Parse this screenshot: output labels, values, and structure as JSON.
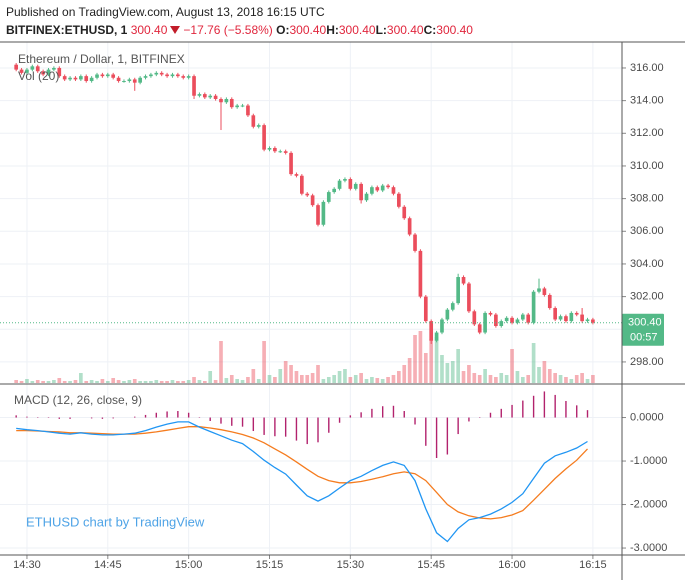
{
  "header": {
    "published": "Published on TradingView.com, August 13, 2018 16:15 UTC",
    "symbol": "BITFINEX:ETHUSD, 1",
    "last": "300.40",
    "change": "−17.76 (−5.58%)",
    "ohlc": [
      {
        "label": "O:",
        "value": "300.40"
      },
      {
        "label": "H:",
        "value": "300.40"
      },
      {
        "label": "L:",
        "value": "300.40"
      },
      {
        "label": "C:",
        "value": "300.40"
      }
    ]
  },
  "chart_data": [
    {
      "type": "candlestick",
      "title": "Ethereum / Dollar, 1, BITFINEX",
      "volume_label": "Vol (20)",
      "x": [
        868,
        869,
        870,
        871,
        872,
        873,
        874,
        875,
        876,
        877,
        878,
        879,
        880,
        881,
        882,
        883,
        884,
        885,
        886,
        887,
        888,
        889,
        890,
        891,
        892,
        893,
        894,
        895,
        896,
        897,
        898,
        899,
        900,
        901,
        902,
        903,
        904,
        905,
        906,
        907,
        908,
        909,
        910,
        911,
        912,
        913,
        914,
        915,
        916,
        917,
        918,
        919,
        920,
        921,
        922,
        923,
        924,
        925,
        926,
        927,
        928,
        929,
        930,
        931,
        932,
        933,
        934,
        935,
        936,
        937,
        938,
        939,
        940,
        941,
        942,
        943,
        944,
        945,
        946,
        947,
        948,
        949,
        950,
        951,
        952,
        953,
        954,
        955,
        956,
        957,
        958,
        959,
        960,
        961,
        962,
        963,
        964,
        965,
        966,
        967,
        968,
        969,
        970,
        971,
        972,
        973,
        974,
        975
      ],
      "open": [
        316.2,
        315.9,
        315.7,
        315.9,
        316.1,
        315.8,
        315.6,
        315.9,
        316.0,
        315.5,
        315.3,
        315.4,
        315.3,
        315.5,
        315.2,
        315.4,
        315.6,
        315.5,
        315.6,
        315.4,
        315.2,
        315.2,
        315.3,
        315.1,
        315.4,
        315.5,
        315.6,
        315.7,
        315.6,
        315.5,
        315.6,
        315.5,
        315.4,
        315.5,
        314.3,
        314.4,
        314.2,
        314.3,
        314.1,
        313.9,
        314.1,
        313.6,
        313.7,
        313.7,
        313.1,
        312.4,
        312.5,
        311.0,
        311.1,
        310.9,
        310.9,
        310.8,
        309.5,
        309.4,
        308.3,
        308.2,
        307.6,
        306.4,
        307.8,
        308.4,
        308.6,
        309.1,
        309.2,
        308.6,
        308.9,
        307.9,
        308.3,
        308.7,
        308.5,
        308.8,
        308.7,
        308.3,
        307.5,
        306.8,
        305.8,
        304.8,
        302.0,
        300.5,
        299.3,
        299.8,
        300.6,
        301.2,
        301.6,
        303.2,
        302.8,
        301.1,
        300.3,
        299.8,
        301.0,
        300.9,
        300.2,
        300.5,
        300.7,
        300.4,
        300.6,
        300.9,
        300.4,
        302.3,
        302.5,
        302.1,
        301.3,
        300.6,
        300.8,
        300.5,
        301.0,
        300.9,
        300.5,
        300.6
      ],
      "high": [
        316.3,
        316.0,
        316.0,
        316.2,
        316.2,
        315.9,
        316.0,
        316.1,
        316.1,
        315.6,
        315.5,
        315.5,
        315.6,
        315.6,
        315.5,
        315.7,
        315.7,
        315.7,
        315.7,
        315.5,
        315.3,
        315.4,
        315.4,
        315.5,
        315.6,
        315.7,
        315.8,
        315.8,
        315.7,
        315.7,
        315.7,
        315.6,
        315.6,
        315.6,
        314.5,
        314.5,
        314.4,
        314.4,
        314.2,
        314.2,
        314.2,
        313.8,
        313.8,
        313.8,
        313.2,
        312.6,
        312.6,
        311.2,
        311.2,
        311.0,
        311.0,
        310.9,
        309.6,
        309.5,
        308.4,
        308.3,
        307.7,
        307.9,
        308.5,
        308.7,
        309.2,
        309.3,
        309.3,
        309.0,
        309.0,
        308.4,
        308.8,
        308.8,
        308.9,
        308.9,
        308.8,
        308.4,
        307.6,
        306.9,
        305.9,
        304.9,
        302.1,
        300.6,
        299.9,
        300.7,
        301.3,
        301.7,
        303.4,
        303.3,
        302.9,
        301.2,
        300.4,
        301.1,
        301.1,
        301.0,
        300.6,
        300.8,
        300.8,
        300.7,
        301.0,
        301.0,
        302.4,
        303.1,
        302.6,
        302.2,
        301.4,
        300.9,
        300.9,
        301.1,
        301.1,
        301.3,
        300.7,
        300.7
      ],
      "low": [
        315.8,
        315.6,
        315.6,
        315.8,
        315.7,
        315.5,
        315.5,
        315.8,
        315.4,
        315.2,
        315.2,
        315.2,
        315.2,
        315.1,
        315.1,
        315.3,
        315.4,
        315.4,
        315.3,
        315.1,
        315.1,
        315.1,
        314.6,
        315.0,
        315.3,
        315.4,
        315.5,
        315.5,
        315.4,
        315.4,
        315.4,
        315.3,
        315.3,
        314.1,
        314.2,
        314.1,
        314.1,
        314.0,
        312.2,
        313.8,
        313.5,
        313.5,
        313.6,
        313.0,
        312.3,
        312.3,
        310.9,
        310.9,
        310.8,
        310.8,
        310.7,
        309.4,
        309.3,
        308.2,
        308.1,
        307.5,
        306.3,
        306.3,
        307.7,
        308.3,
        308.5,
        309.0,
        308.5,
        308.5,
        307.7,
        307.8,
        308.2,
        308.4,
        308.4,
        308.6,
        308.2,
        307.4,
        306.7,
        305.7,
        304.7,
        301.9,
        300.4,
        299.1,
        299.2,
        299.7,
        300.5,
        301.1,
        301.5,
        302.7,
        301.0,
        300.2,
        299.7,
        299.7,
        300.8,
        300.1,
        300.1,
        300.4,
        300.3,
        300.3,
        300.5,
        300.3,
        300.3,
        302.2,
        302.0,
        301.2,
        300.5,
        300.5,
        300.4,
        300.4,
        300.8,
        300.4,
        300.4,
        300.3
      ],
      "close": [
        315.9,
        315.7,
        315.9,
        316.1,
        315.8,
        315.6,
        315.9,
        316.0,
        315.5,
        315.3,
        315.4,
        315.3,
        315.5,
        315.2,
        315.4,
        315.6,
        315.5,
        315.6,
        315.4,
        315.2,
        315.2,
        315.3,
        315.1,
        315.4,
        315.5,
        315.6,
        315.7,
        315.6,
        315.5,
        315.6,
        315.5,
        315.4,
        315.5,
        314.3,
        314.4,
        314.2,
        314.3,
        314.1,
        313.9,
        314.1,
        313.6,
        313.7,
        313.7,
        313.1,
        312.4,
        312.5,
        311.0,
        311.1,
        310.9,
        310.9,
        310.8,
        309.5,
        309.4,
        308.3,
        308.2,
        307.6,
        306.4,
        307.8,
        308.4,
        308.6,
        309.1,
        309.2,
        308.6,
        308.9,
        307.9,
        308.3,
        308.7,
        308.5,
        308.8,
        308.7,
        308.3,
        307.5,
        306.8,
        305.8,
        304.8,
        302.0,
        300.5,
        299.3,
        299.8,
        300.6,
        301.2,
        301.6,
        303.2,
        302.8,
        301.1,
        300.3,
        299.8,
        301.0,
        300.9,
        300.2,
        300.5,
        300.7,
        300.4,
        300.6,
        300.9,
        300.4,
        302.3,
        302.5,
        302.1,
        301.3,
        300.6,
        300.8,
        300.5,
        301.0,
        300.9,
        300.5,
        300.6,
        300.4
      ],
      "volume": [
        3,
        2,
        4,
        2,
        3,
        2,
        2,
        3,
        5,
        2,
        2,
        3,
        10,
        2,
        3,
        2,
        4,
        2,
        5,
        3,
        2,
        3,
        4,
        2,
        2,
        2,
        3,
        2,
        2,
        3,
        2,
        2,
        3,
        6,
        3,
        2,
        12,
        3,
        42,
        5,
        8,
        4,
        3,
        6,
        14,
        4,
        42,
        8,
        6,
        14,
        22,
        18,
        12,
        8,
        8,
        10,
        18,
        4,
        6,
        8,
        12,
        14,
        6,
        8,
        10,
        4,
        6,
        5,
        4,
        6,
        8,
        12,
        18,
        25,
        48,
        52,
        30,
        44,
        46,
        28,
        20,
        22,
        34,
        12,
        18,
        10,
        8,
        14,
        8,
        6,
        10,
        8,
        34,
        12,
        6,
        8,
        40,
        16,
        22,
        14,
        10,
        8,
        6,
        4,
        8,
        10,
        4,
        8
      ],
      "up_color": "#53b987",
      "down_color": "#eb4d5c",
      "xlim": [
        865,
        980.4
      ],
      "xticks": [
        {
          "value": 870,
          "label": "14:30"
        },
        {
          "value": 885,
          "label": "14:45"
        },
        {
          "value": 900,
          "label": "15:00"
        },
        {
          "value": 915,
          "label": "15:15"
        },
        {
          "value": 930,
          "label": "15:30"
        },
        {
          "value": 945,
          "label": "15:45"
        },
        {
          "value": 960,
          "label": "16:00"
        },
        {
          "value": 975,
          "label": "16:15"
        }
      ],
      "ylim": [
        296.71,
        317.59
      ],
      "yticks": [
        {
          "value": 298,
          "label": "298.00"
        },
        {
          "value": 300,
          "label": "300.00"
        },
        {
          "value": 302,
          "label": "302.00"
        },
        {
          "value": 304,
          "label": "304.00"
        },
        {
          "value": 306,
          "label": "306.00"
        },
        {
          "value": 308,
          "label": "308.00"
        },
        {
          "value": 310,
          "label": "310.00"
        },
        {
          "value": 312,
          "label": "312.00"
        },
        {
          "value": 314,
          "label": "314.00"
        },
        {
          "value": 316,
          "label": "316.00"
        }
      ],
      "grid": true,
      "last_price_label": "300.40",
      "countdown": "00:57"
    },
    {
      "type": "macd",
      "title": "MACD (12, 26, close, 9)",
      "watermark": "ETHUSD chart by TradingView",
      "x": [
        868,
        870,
        872,
        874,
        876,
        878,
        880,
        882,
        884,
        886,
        888,
        890,
        892,
        894,
        896,
        898,
        900,
        902,
        904,
        906,
        908,
        910,
        912,
        914,
        916,
        918,
        920,
        922,
        924,
        926,
        928,
        930,
        932,
        934,
        936,
        938,
        940,
        942,
        944,
        946,
        948,
        950,
        952,
        954,
        956,
        958,
        960,
        962,
        964,
        966,
        968,
        970,
        972,
        974
      ],
      "macd": {
        "color": "#2196f3",
        "values": [
          -0.25,
          -0.28,
          -0.3,
          -0.33,
          -0.36,
          -0.38,
          -0.35,
          -0.38,
          -0.4,
          -0.4,
          -0.38,
          -0.36,
          -0.3,
          -0.22,
          -0.15,
          -0.1,
          -0.1,
          -0.22,
          -0.32,
          -0.42,
          -0.52,
          -0.6,
          -0.78,
          -0.98,
          -1.15,
          -1.3,
          -1.55,
          -1.8,
          -1.92,
          -1.8,
          -1.62,
          -1.45,
          -1.35,
          -1.22,
          -1.1,
          -1.02,
          -1.1,
          -1.45,
          -2.1,
          -2.65,
          -2.85,
          -2.55,
          -2.35,
          -2.3,
          -2.22,
          -2.1,
          -1.95,
          -1.75,
          -1.4,
          -1.05,
          -0.88,
          -0.8,
          -0.7,
          -0.55
        ]
      },
      "signal": {
        "color": "#f57c1f",
        "values": [
          -0.3,
          -0.3,
          -0.31,
          -0.32,
          -0.33,
          -0.35,
          -0.35,
          -0.36,
          -0.37,
          -0.38,
          -0.38,
          -0.38,
          -0.36,
          -0.33,
          -0.29,
          -0.25,
          -0.21,
          -0.21,
          -0.24,
          -0.28,
          -0.33,
          -0.39,
          -0.47,
          -0.58,
          -0.72,
          -0.86,
          -1.02,
          -1.19,
          -1.35,
          -1.45,
          -1.5,
          -1.5,
          -1.47,
          -1.42,
          -1.36,
          -1.29,
          -1.25,
          -1.29,
          -1.45,
          -1.72,
          -2.0,
          -2.17,
          -2.26,
          -2.31,
          -2.33,
          -2.3,
          -2.24,
          -2.14,
          -1.9,
          -1.65,
          -1.4,
          -1.18,
          -0.98,
          -0.72
        ]
      },
      "histogram": {
        "color": "#b2226d",
        "values": [
          0.05,
          0.02,
          0.01,
          -0.01,
          -0.03,
          -0.03,
          0,
          -0.02,
          -0.03,
          -0.02,
          0,
          0.02,
          0.06,
          0.11,
          0.14,
          0.15,
          0.11,
          -0.01,
          -0.08,
          -0.14,
          -0.19,
          -0.21,
          -0.31,
          -0.4,
          -0.43,
          -0.44,
          -0.53,
          -0.61,
          -0.57,
          -0.35,
          -0.12,
          0.05,
          0.12,
          0.2,
          0.26,
          0.27,
          0.15,
          -0.16,
          -0.65,
          -0.93,
          -0.85,
          -0.38,
          -0.09,
          0.01,
          0.11,
          0.2,
          0.29,
          0.39,
          0.5,
          0.6,
          0.52,
          0.38,
          0.28,
          0.17
        ]
      },
      "ylim": [
        -3.16,
        0.587
      ],
      "yticks": [
        {
          "value": 0,
          "label": "0.0000"
        },
        {
          "value": -1,
          "label": "-1.0000"
        },
        {
          "value": -2,
          "label": "-2.0000"
        },
        {
          "value": -3,
          "label": "-3.0000"
        }
      ],
      "grid": true
    }
  ]
}
